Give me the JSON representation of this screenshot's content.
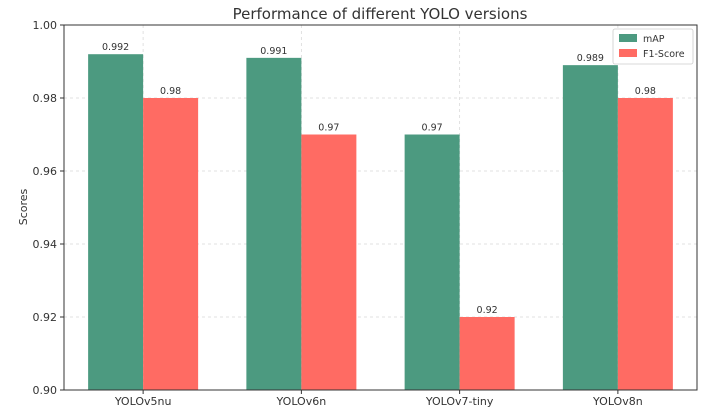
{
  "chart_data": {
    "type": "bar",
    "title": "Performance of different YOLO versions",
    "xlabel": "",
    "ylabel": "Scores",
    "categories": [
      "YOLOv5nu",
      "YOLOv6n",
      "YOLOv7-tiny",
      "YOLOv8n"
    ],
    "series": [
      {
        "name": "mAP",
        "values": [
          0.992,
          0.991,
          0.97,
          0.989
        ],
        "labels": [
          "0.992",
          "0.991",
          "0.97",
          "0.989"
        ],
        "color": "#4c9a80"
      },
      {
        "name": "F1-Score",
        "values": [
          0.98,
          0.97,
          0.92,
          0.98
        ],
        "labels": [
          "0.98",
          "0.97",
          "0.92",
          "0.98"
        ],
        "color": "#ff6b63"
      }
    ],
    "ylim": [
      0.9,
      1.0
    ],
    "yticks": [
      "0.90",
      "0.92",
      "0.94",
      "0.96",
      "0.98",
      "1.00"
    ],
    "grid": true,
    "legend_position": "top-right"
  }
}
